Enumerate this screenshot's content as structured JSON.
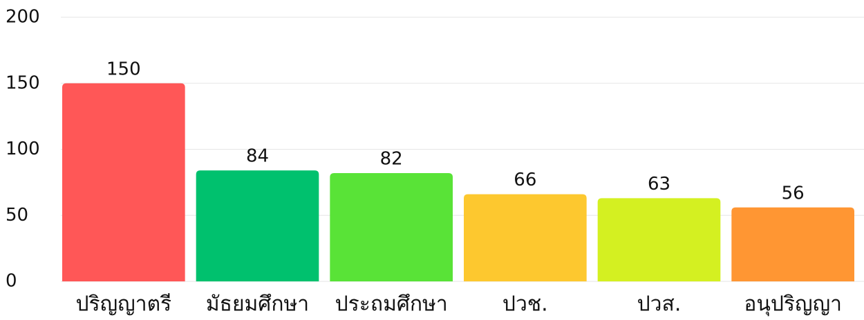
{
  "chart_data": {
    "type": "bar",
    "categories": [
      "ปริญญาตรี",
      "มัธยมศึกษา",
      "ประถมศึกษา",
      "ปวช.",
      "ปวส.",
      "อนุปริญญา"
    ],
    "values": [
      150,
      84,
      82,
      66,
      63,
      56
    ],
    "colors": [
      "#ff5757",
      "#00c16e",
      "#59e337",
      "#fdc82f",
      "#d4f021",
      "#ff9633"
    ],
    "ylim": [
      0,
      200
    ],
    "yticks": [
      0,
      50,
      100,
      150,
      200
    ],
    "grid": true
  }
}
